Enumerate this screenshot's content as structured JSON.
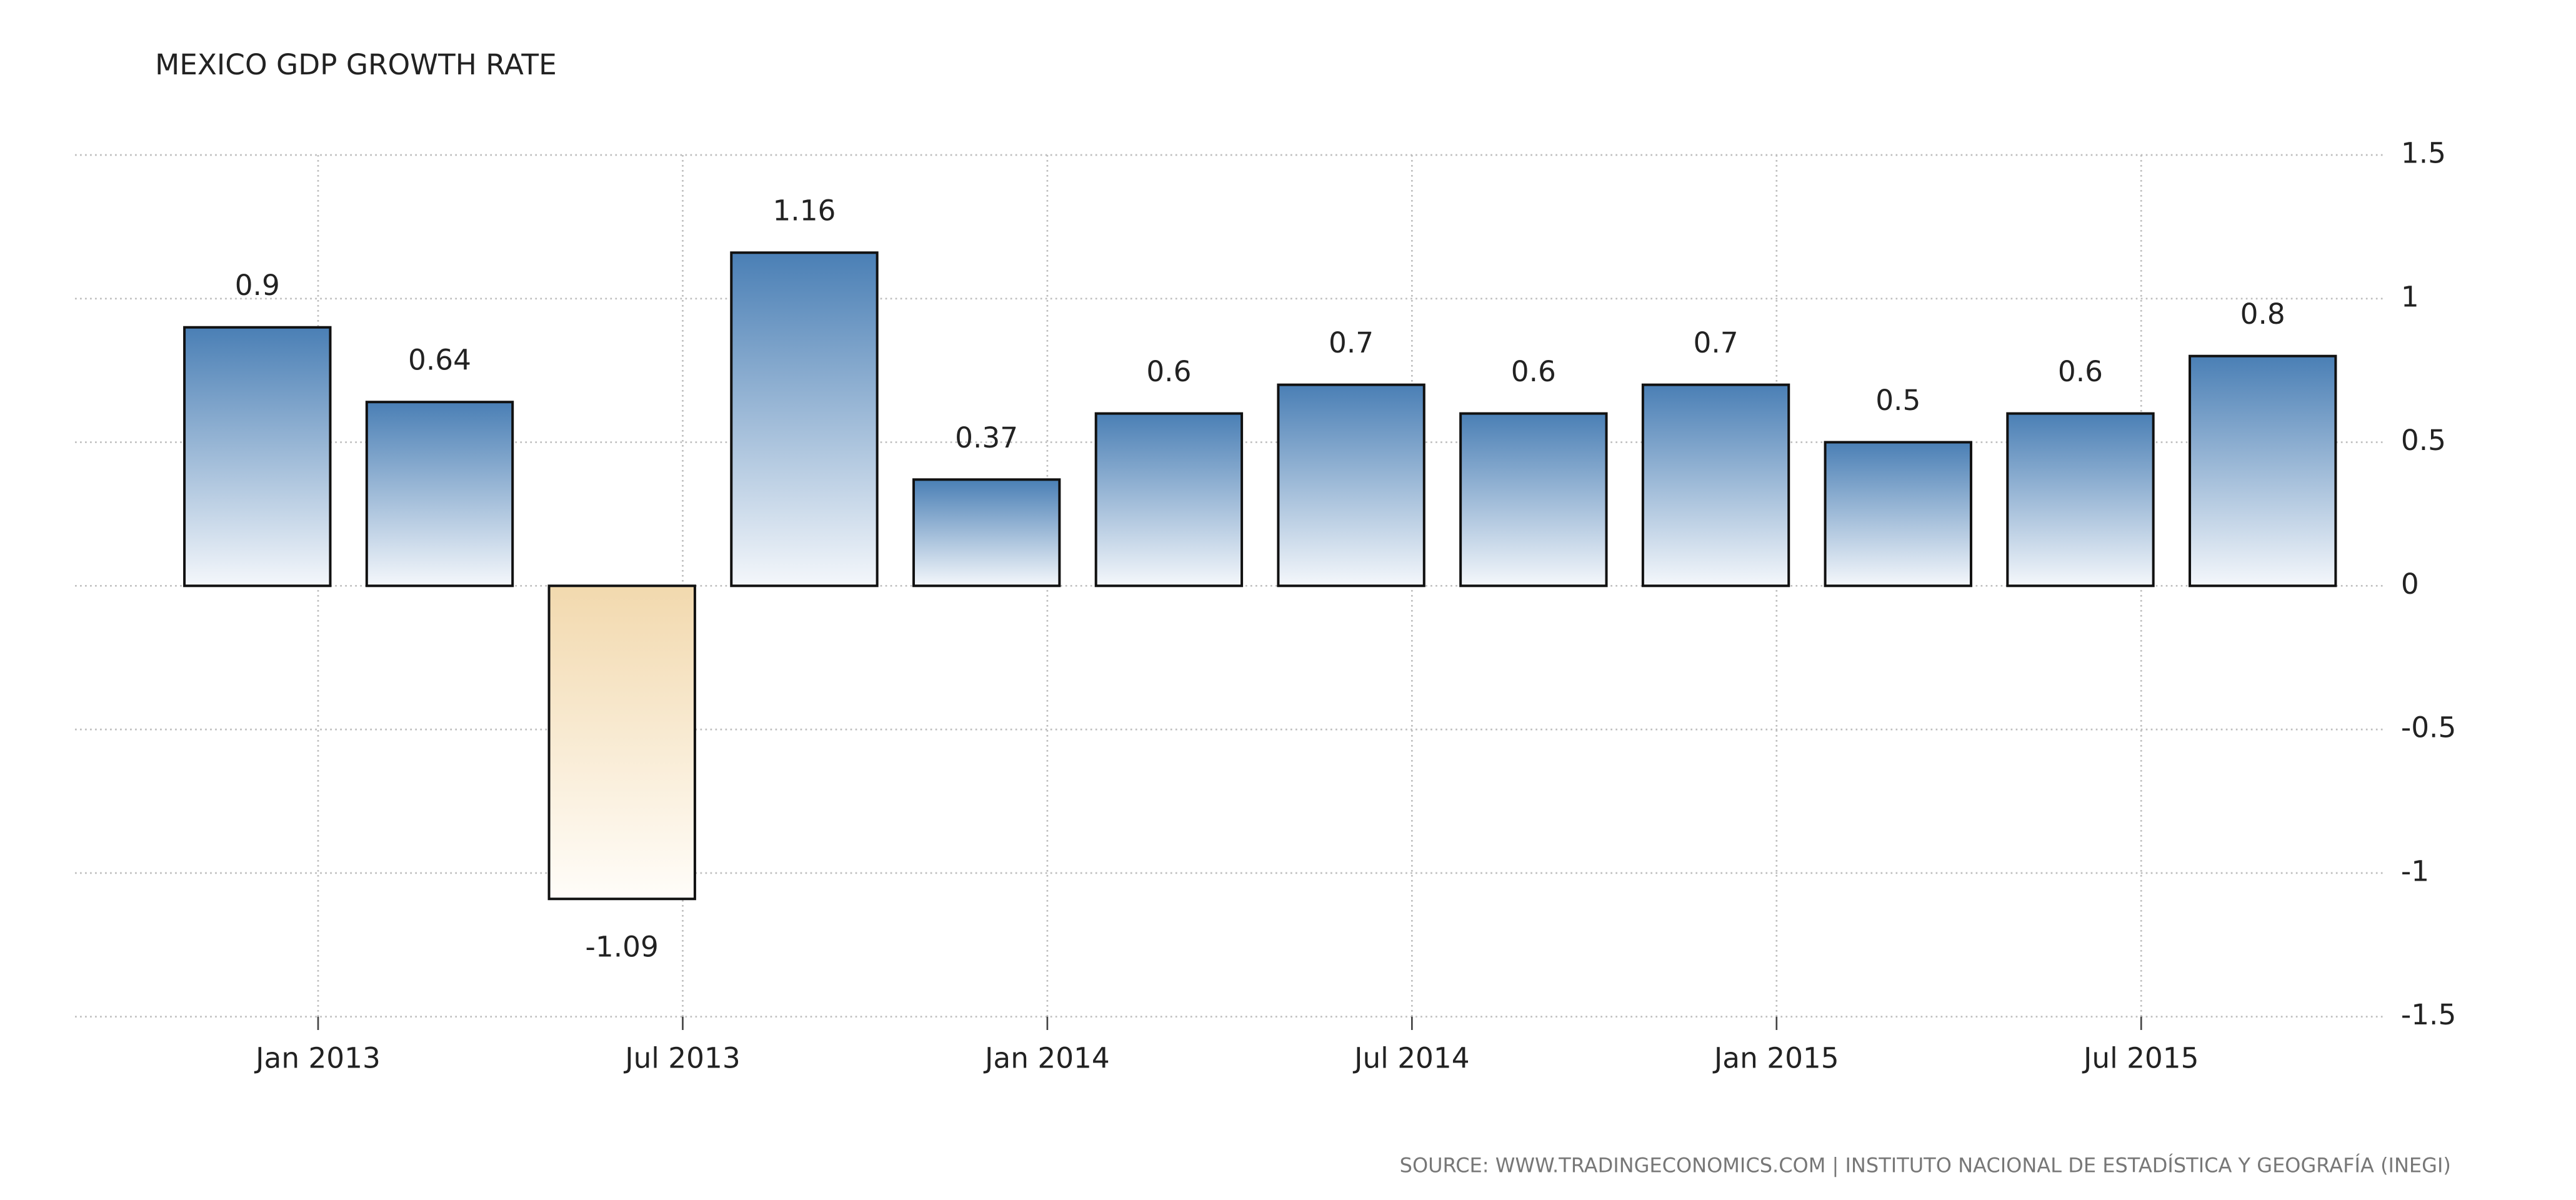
{
  "chart_data": {
    "type": "bar",
    "title": "MEXICO GDP GROWTH RATE",
    "source": "SOURCE: WWW.TRADINGECONOMICS.COM | INSTITUTO NACIONAL DE ESTADÍSTICA Y GEOGRAFÍA (INEGI)",
    "x": [
      "2012-12",
      "2013-03",
      "2013-06",
      "2013-09",
      "2013-12",
      "2014-03",
      "2014-06",
      "2014-09",
      "2014-12",
      "2015-03",
      "2015-06",
      "2015-09"
    ],
    "series": [
      {
        "name": "GDP Growth Rate",
        "color": "#4a7fb5",
        "negative_color": "#f2d9ae",
        "values": [
          0.9,
          0.64,
          -1.09,
          1.16,
          0.37,
          0.6,
          0.7,
          0.6,
          0.7,
          0.5,
          0.6,
          0.8
        ]
      }
    ],
    "xlim": [
      "2012-09",
      "2015-11"
    ],
    "xticks": [
      {
        "value": "2013-01",
        "label": "Jan 2013"
      },
      {
        "value": "2013-07",
        "label": "Jul 2013"
      },
      {
        "value": "2014-01",
        "label": "Jan 2014"
      },
      {
        "value": "2014-07",
        "label": "Jul 2014"
      },
      {
        "value": "2015-01",
        "label": "Jan 2015"
      },
      {
        "value": "2015-07",
        "label": "Jul 2015"
      }
    ],
    "ylim": [
      -1.5,
      1.5
    ],
    "yticks": [
      1.5,
      1,
      0.5,
      0,
      -0.5,
      -1,
      -1.5
    ],
    "grid": true
  }
}
